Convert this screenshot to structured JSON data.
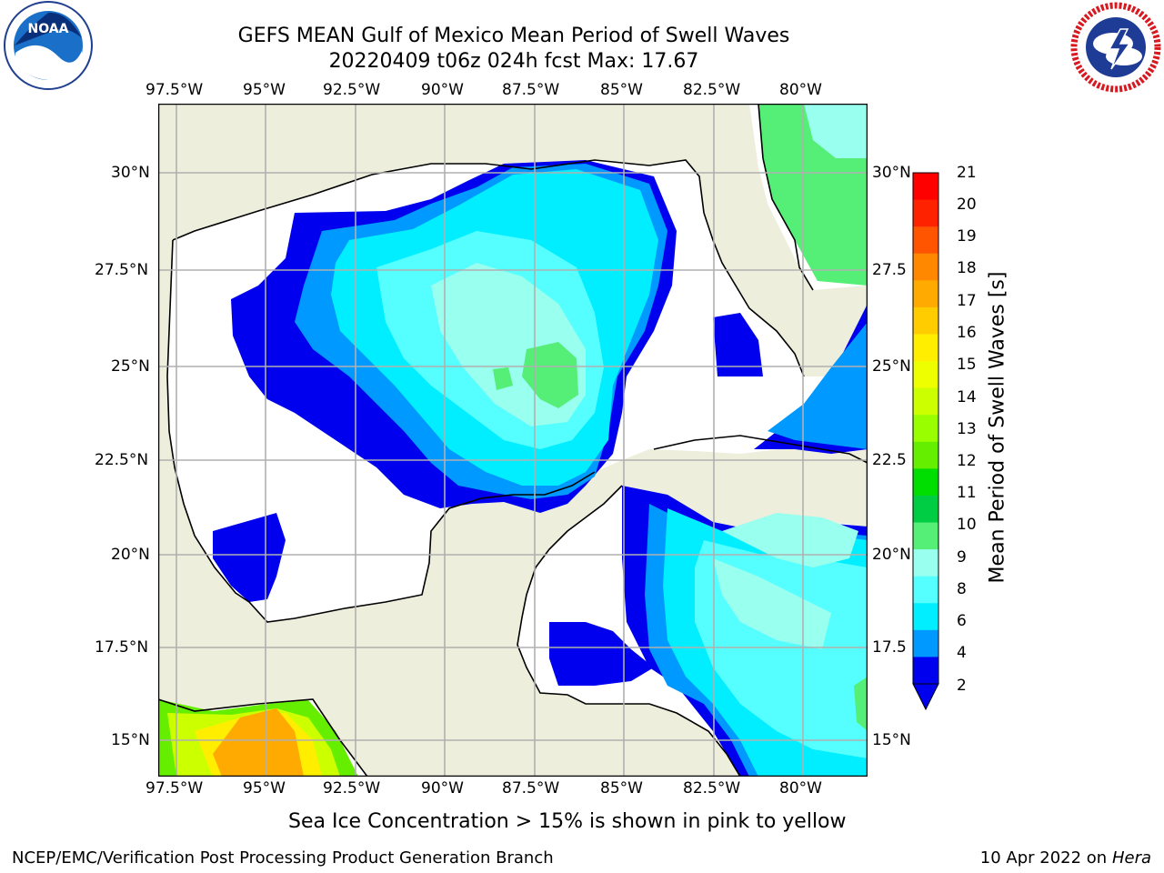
{
  "title_line1": "GEFS MEAN Gulf of Mexico Mean Period of Swell Waves",
  "title_line2": "20220409 t06z 024h fcst   Max: 17.67",
  "lon_ticks": [
    "97.5°W",
    "95°W",
    "92.5°W",
    "90°W",
    "87.5°W",
    "85°W",
    "82.5°W",
    "80°W"
  ],
  "lat_ticks_left": [
    "30°N",
    "27.5°N",
    "25°N",
    "22.5°N",
    "20°N",
    "17.5°N",
    "15°N"
  ],
  "lat_ticks_right": [
    "30°N",
    "27.5",
    "25°N",
    "22.5",
    "20°N",
    "17.5",
    "15°N"
  ],
  "colorbar": {
    "label": "Mean Period of Swell Waves [s]",
    "ticks": [
      "21",
      "20",
      "19",
      "18",
      "17",
      "16",
      "15",
      "14",
      "13",
      "12",
      "11",
      "10",
      "9",
      "8",
      "6",
      "4",
      "2"
    ],
    "colors_top_to_bottom": [
      "#ff0000",
      "#ff2200",
      "#ff5500",
      "#ff8800",
      "#ffaa00",
      "#ffcc00",
      "#ffee00",
      "#eeff00",
      "#ccff00",
      "#99ff00",
      "#66ee00",
      "#00dd00",
      "#00cc44",
      "#55ee77",
      "#99ffee",
      "#55ffff",
      "#00eeff",
      "#0099ff",
      "#0000ee"
    ]
  },
  "sea_ice_note": "Sea Ice Concentration > 15% is shown in pink to yellow",
  "footer_left": "NCEP/EMC/Verification Post Processing Product Generation Branch",
  "footer_right_date": "10 Apr 2022 on ",
  "footer_right_host": "Hera",
  "logos": {
    "left": {
      "icon": "noaa-logo",
      "text": "NOAA"
    },
    "right": {
      "icon": "nws-logo",
      "text": "NATIONAL WEATHER SERVICE"
    }
  },
  "colors": {
    "land": "#eeeedd",
    "grid": "#b0b0b0",
    "ocean_none": "#ffffff"
  }
}
